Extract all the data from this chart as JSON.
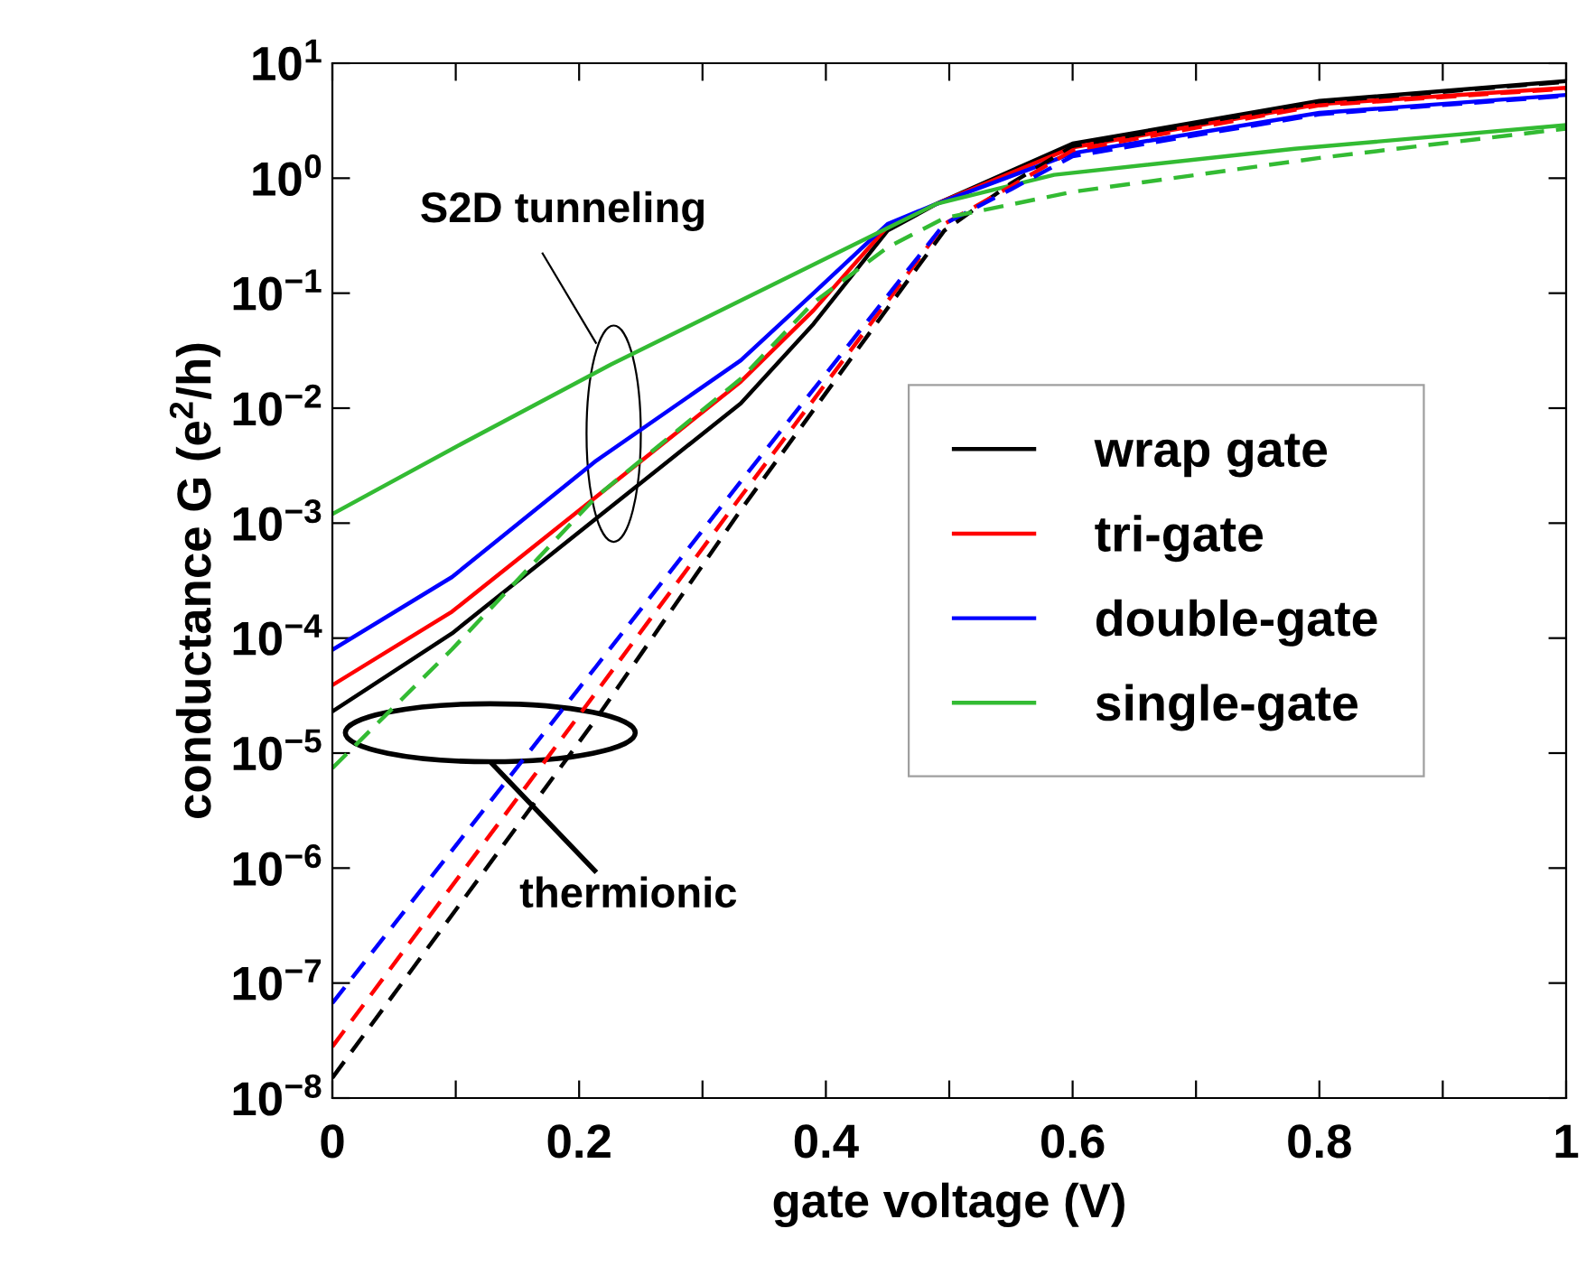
{
  "chart_data": {
    "type": "line",
    "xlabel": "gate voltage (V)",
    "ylabel": "conductance G (e$^{2}$/h)",
    "log": "y",
    "xlim": [
      0,
      1
    ],
    "ylim": [
      1e-08,
      10
    ],
    "xticks": [
      0,
      {
        "value": 0.1,
        "label": null
      },
      0.2,
      {
        "value": 0.3,
        "label": null
      },
      0.4,
      {
        "value": 0.5,
        "label": null
      },
      0.6,
      {
        "value": 0.7,
        "label": null
      },
      0.8,
      {
        "value": 0.9,
        "label": null
      },
      1
    ],
    "yticks": [
      {
        "value": 1e-08,
        "label": "10$^{−8}$"
      },
      {
        "value": 1e-07,
        "label": "10$^{−7}$"
      },
      {
        "value": 1e-06,
        "label": "10$^{−6}$"
      },
      {
        "value": 1e-05,
        "label": "10$^{−5}$"
      },
      {
        "value": 0.0001,
        "label": "10$^{−4}$"
      },
      {
        "value": 0.001,
        "label": "10$^{−3}$"
      },
      {
        "value": 0.01,
        "label": "10$^{−2}$"
      },
      {
        "value": 0.1,
        "label": "10$^{−1}$"
      },
      {
        "value": 1,
        "label": "10$^{0}$"
      },
      {
        "value": 10,
        "label": "10$^{1}$"
      }
    ],
    "grid": false,
    "legend": "right",
    "marker": "none",
    "series": [
      {
        "name": "wrap gate",
        "color": "#000000",
        "line_style": "solid",
        "x": [
          0,
          0.097,
          0.214,
          0.331,
          0.39,
          0.45,
          0.49,
          0.6,
          0.8,
          1
        ],
        "values": [
          2.3e-05,
          0.00011,
          0.0011,
          0.011,
          0.054,
          0.35,
          0.6,
          2.0,
          4.7,
          7.0
        ]
      },
      {
        "name": "tri-gate",
        "color": "#ff0000",
        "line_style": "solid",
        "x": [
          0,
          0.097,
          0.214,
          0.331,
          0.39,
          0.45,
          0.49,
          0.6,
          0.8,
          1
        ],
        "values": [
          3.9e-05,
          0.00017,
          0.0017,
          0.017,
          0.071,
          0.38,
          0.6,
          1.85,
          4.4,
          6.1
        ]
      },
      {
        "name": "double-gate",
        "color": "#0000ff",
        "line_style": "solid",
        "x": [
          0,
          0.097,
          0.214,
          0.331,
          0.39,
          0.45,
          0.49,
          0.6,
          0.8,
          1
        ],
        "values": [
          7.9e-05,
          0.00034,
          0.0035,
          0.026,
          0.1,
          0.4,
          0.6,
          1.65,
          3.7,
          5.3
        ]
      },
      {
        "name": "single-gate",
        "color": "#33bb33",
        "line_style": "solid",
        "x": [
          0,
          0.1,
          0.226,
          0.49,
          0.585,
          0.78,
          1
        ],
        "values": [
          0.0012,
          0.0046,
          0.024,
          0.6,
          1.07,
          1.8,
          2.9
        ]
      },
      {
        "color": "#000000",
        "line_style": "dashed",
        "x": [
          0,
          0.214,
          0.331,
          0.45,
          0.496,
          0.55,
          0.6,
          0.8,
          1
        ],
        "values": [
          1.5e-08,
          2e-05,
          0.0013,
          0.074,
          0.35,
          0.9,
          1.9,
          4.6,
          6.9
        ]
      },
      {
        "color": "#ff0000",
        "line_style": "dashed",
        "x": [
          0,
          0.214,
          0.331,
          0.45,
          0.496,
          0.55,
          0.6,
          0.8,
          1
        ],
        "values": [
          2.8e-08,
          3.4e-05,
          0.0017,
          0.085,
          0.4,
          0.85,
          1.75,
          4.3,
          6.0
        ]
      },
      {
        "color": "#0000ff",
        "line_style": "dashed",
        "x": [
          0,
          0.214,
          0.331,
          0.45,
          0.496,
          0.55,
          0.6,
          0.8,
          1
        ],
        "values": [
          6.7e-08,
          5.7e-05,
          0.0023,
          0.095,
          0.4,
          0.8,
          1.55,
          3.6,
          5.2
        ]
      },
      {
        "color": "#33bb33",
        "line_style": "dashed",
        "x": [
          0,
          0.097,
          0.214,
          0.331,
          0.39,
          0.45,
          0.496,
          0.6,
          0.8,
          1
        ],
        "values": [
          7.4e-06,
          8e-05,
          0.0017,
          0.018,
          0.083,
          0.25,
          0.45,
          0.76,
          1.5,
          2.7
        ]
      }
    ],
    "annotations": [
      "S2D tunneling",
      "thermionic"
    ]
  }
}
